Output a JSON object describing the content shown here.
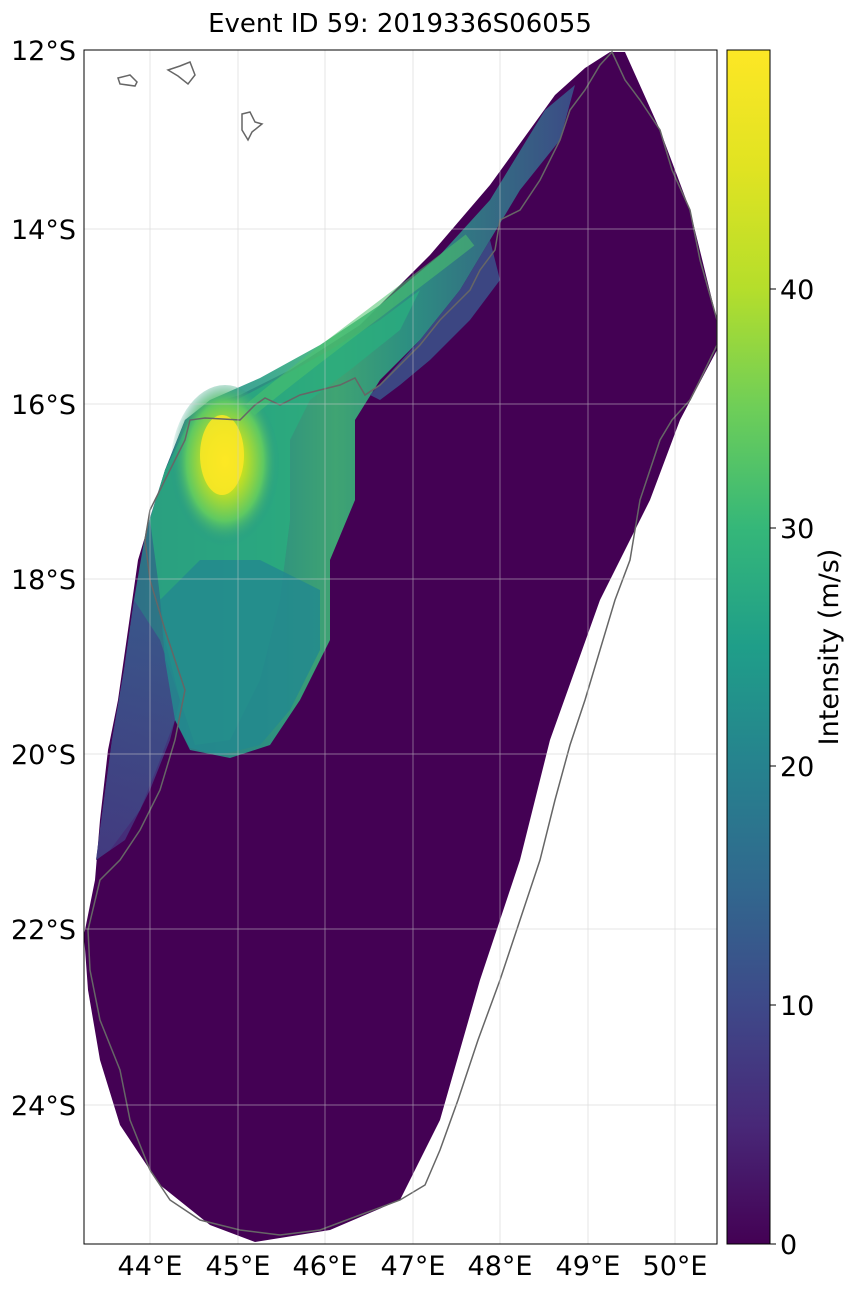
{
  "title": "Event ID 59: 2019336S06055",
  "map": {
    "lon_ticks": [
      "44°E",
      "45°E",
      "46°E",
      "47°E",
      "48°E",
      "49°E",
      "50°E"
    ],
    "lat_ticks": [
      "12°S",
      "14°S",
      "16°S",
      "18°S",
      "20°S",
      "22°S",
      "24°S"
    ],
    "extent": {
      "lon_min": 43.25,
      "lon_max": 50.5,
      "lat_min": -25.65,
      "lat_max": -12.0
    },
    "grid": true,
    "coastline_color": "#666666",
    "background_color": "#440154"
  },
  "colorbar": {
    "label": "Intensity (m/s)",
    "ticks": [
      "0",
      "10",
      "20",
      "30",
      "40"
    ],
    "range": [
      0,
      49.5
    ],
    "colormap": "viridis"
  }
}
